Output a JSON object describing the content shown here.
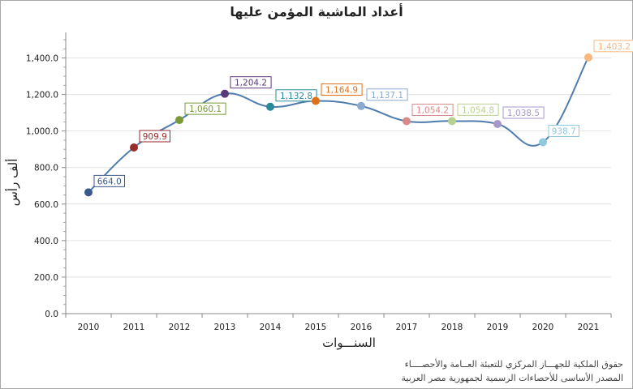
{
  "chart_data": {
    "type": "line",
    "title": "أعداد الماشية المؤمن عليها",
    "xlabel": "السنـــوات",
    "ylabel": "ألف رأس",
    "categories": [
      "2010",
      "2011",
      "2012",
      "2013",
      "2014",
      "2015",
      "2016",
      "2017",
      "2018",
      "2019",
      "2020",
      "2021"
    ],
    "values": [
      664.0,
      909.9,
      1060.1,
      1204.2,
      1132.8,
      1164.9,
      1137.1,
      1054.2,
      1054.8,
      1038.5,
      938.7,
      1403.2
    ],
    "value_labels": [
      "664.0",
      "909.9",
      "1,060.1",
      "1,204.2",
      "1,132.8",
      "1,164.9",
      "1,137.1",
      "1,054.2",
      "1,054.8",
      "1,038.5",
      "938.7",
      "1,403.2"
    ],
    "point_colors": [
      "#3a5a8c",
      "#9b2a2a",
      "#7a9a3a",
      "#5a3a7a",
      "#2a8a9a",
      "#e07018",
      "#8aaad0",
      "#d88a8a",
      "#b8d090",
      "#a898c8",
      "#90c8e0",
      "#f8b880"
    ],
    "line_color": "#4f7cae",
    "ylim": [
      0,
      1400
    ],
    "yticks": [
      "0.0",
      "200.0",
      "400.0",
      "600.0",
      "800.0",
      "1,000.0",
      "1,200.0",
      "1,400.0"
    ],
    "grid": true,
    "legend": "none"
  },
  "footer": {
    "line1": "حقوق الملكية للجهـــاز المركزي للتعبئة العــامة والأحصــــاء",
    "line2": "المصدر الأساسى للأحصاءات الرسمية لجمهورية مصر العربية"
  }
}
